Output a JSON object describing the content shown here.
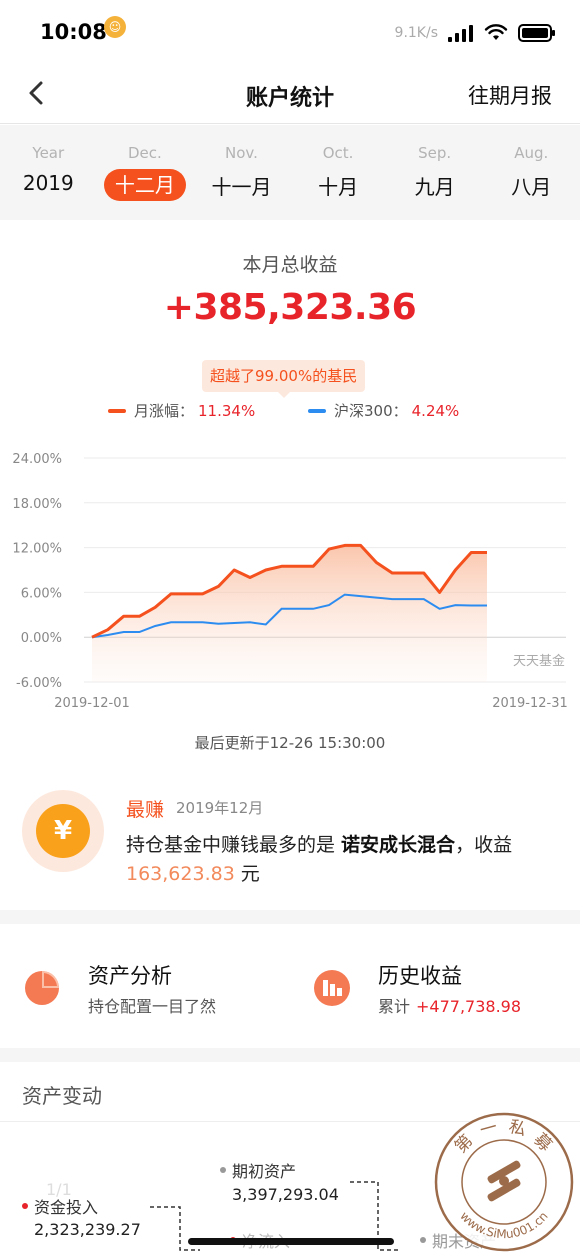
{
  "status_bar": {
    "time": "10:08",
    "speed": "9.1K/s"
  },
  "nav": {
    "title": "账户统计",
    "right_link": "往期月报"
  },
  "months": [
    {
      "en": "Year",
      "cn": "2019",
      "active": false
    },
    {
      "en": "Dec.",
      "cn": "十二月",
      "active": true
    },
    {
      "en": "Nov.",
      "cn": "十一月",
      "active": false
    },
    {
      "en": "Oct.",
      "cn": "十月",
      "active": false
    },
    {
      "en": "Sep.",
      "cn": "九月",
      "active": false
    },
    {
      "en": "Aug.",
      "cn": "八月",
      "active": false
    }
  ],
  "summary": {
    "label": "本月总收益",
    "value": "+385,323.36",
    "beat_badge": "超越了99.00%的基民"
  },
  "legend": {
    "series1_name": "月涨幅：",
    "series1_value": "11.34%",
    "series2_name": "沪深300：",
    "series2_value": "4.24%"
  },
  "chart_data": {
    "type": "area",
    "x_start_label": "2019-12-01",
    "x_end_label": "2019-12-31",
    "y_ticks": [
      "24.00%",
      "18.00%",
      "12.00%",
      "6.00%",
      "0.00%",
      "-6.00%"
    ],
    "ylim": [
      -6,
      24
    ],
    "watermark": "天天基金",
    "x_days": [
      1,
      2,
      3,
      4,
      5,
      6,
      7,
      8,
      9,
      10,
      11,
      12,
      13,
      14,
      15,
      16,
      17,
      18,
      19,
      20,
      21,
      22,
      23,
      24,
      25,
      26
    ],
    "series": [
      {
        "name": "月涨幅",
        "color": "#f4511e",
        "values": [
          0.0,
          1.0,
          2.8,
          2.8,
          4.0,
          5.8,
          5.8,
          5.8,
          6.8,
          9.0,
          8.0,
          9.0,
          9.5,
          9.5,
          9.5,
          11.8,
          12.3,
          12.3,
          10.0,
          8.6,
          8.6,
          8.6,
          6.0,
          9.0,
          11.34,
          11.34
        ]
      },
      {
        "name": "沪深300",
        "color": "#2d8cf0",
        "values": [
          0.0,
          0.3,
          0.7,
          0.7,
          1.5,
          2.0,
          2.0,
          2.0,
          1.8,
          1.9,
          2.0,
          1.7,
          3.8,
          3.8,
          3.8,
          4.3,
          5.7,
          5.5,
          5.3,
          5.1,
          5.1,
          5.1,
          3.8,
          4.3,
          4.24,
          4.24
        ]
      }
    ]
  },
  "update_text": "最后更新于12-26 15:30:00",
  "best": {
    "symbol": "¥",
    "title": "最赚",
    "date": "2019年12月",
    "line_prefix": "持仓基金中赚钱最多的是 ",
    "fund": "诺安成长混合",
    "line_suffix": "，收益",
    "amount": "163,623.83",
    "unit": "元"
  },
  "analysis": {
    "left_title": "资产分析",
    "left_sub": "持仓配置一目了然",
    "right_title": "历史收益",
    "right_sub_label": "累计",
    "right_sub_value": "+477,738.98"
  },
  "asset": {
    "title": "资产变动",
    "faint": "1/1",
    "capital_in_label": "资金投入",
    "capital_in_value": "2,323,239.27",
    "begin_label": "期初资产",
    "begin_value": "3,397,293.04",
    "net_in_label": "净流入",
    "end_label": "期末资产"
  },
  "stamp": {
    "top_text": "第 一 私 募",
    "bottom_text": "www.SiMu001.cn"
  },
  "colors": {
    "accent": "#f4511e",
    "red": "#e8242b",
    "blue": "#2d8cf0"
  }
}
